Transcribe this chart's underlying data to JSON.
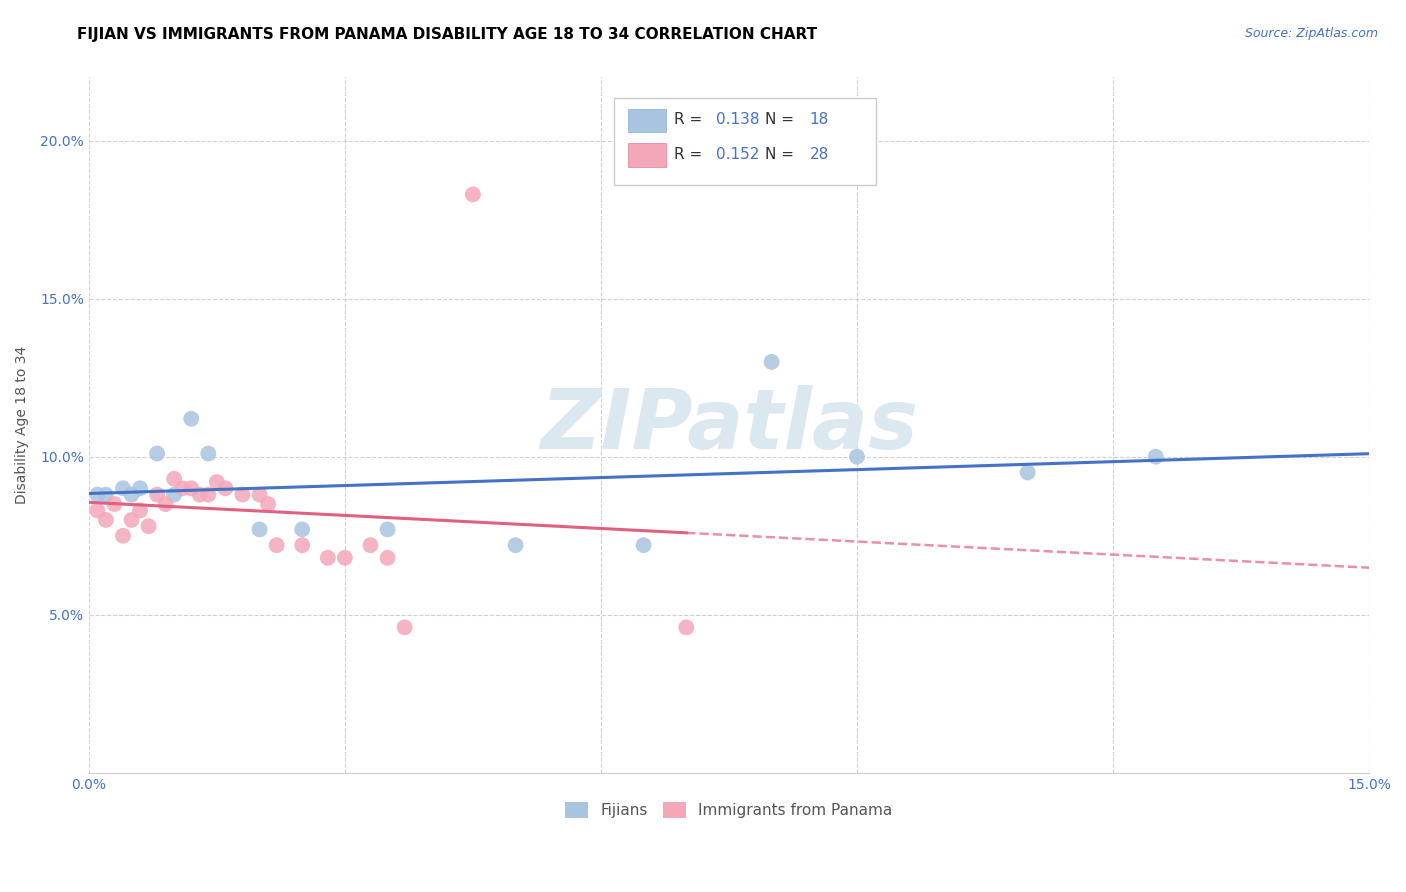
{
  "title": "FIJIAN VS IMMIGRANTS FROM PANAMA DISABILITY AGE 18 TO 34 CORRELATION CHART",
  "source": "Source: ZipAtlas.com",
  "ylabel": "Disability Age 18 to 34",
  "xlim": [
    0.0,
    0.15
  ],
  "ylim": [
    0.0,
    0.22
  ],
  "fijians_x": [
    0.001,
    0.002,
    0.004,
    0.005,
    0.006,
    0.008,
    0.01,
    0.012,
    0.014,
    0.02,
    0.025,
    0.035,
    0.05,
    0.065,
    0.08,
    0.09,
    0.11,
    0.125
  ],
  "fijians_y": [
    0.088,
    0.088,
    0.09,
    0.088,
    0.09,
    0.101,
    0.088,
    0.112,
    0.101,
    0.077,
    0.077,
    0.077,
    0.072,
    0.072,
    0.13,
    0.1,
    0.095,
    0.1
  ],
  "panama_x": [
    0.001,
    0.002,
    0.003,
    0.004,
    0.005,
    0.006,
    0.007,
    0.008,
    0.009,
    0.01,
    0.011,
    0.012,
    0.013,
    0.014,
    0.015,
    0.016,
    0.018,
    0.02,
    0.021,
    0.022,
    0.025,
    0.028,
    0.03,
    0.033,
    0.035,
    0.037,
    0.045,
    0.07
  ],
  "panama_y": [
    0.083,
    0.08,
    0.085,
    0.075,
    0.08,
    0.083,
    0.078,
    0.088,
    0.085,
    0.093,
    0.09,
    0.09,
    0.088,
    0.088,
    0.092,
    0.09,
    0.088,
    0.088,
    0.085,
    0.072,
    0.072,
    0.068,
    0.068,
    0.072,
    0.068,
    0.046,
    0.183,
    0.046
  ],
  "R_fijians": 0.138,
  "N_fijians": 18,
  "R_panama": 0.152,
  "N_panama": 28,
  "fijian_color": "#a8c4e0",
  "panama_color": "#f4a7b9",
  "fijian_line_color": "#4472c4",
  "panama_line_color": "#e06080",
  "watermark": "ZIPatlas",
  "watermark_color": "#dce8f0",
  "title_fontsize": 11,
  "axis_label_fontsize": 10,
  "tick_fontsize": 10,
  "source_color": "#4472c4",
  "tick_color": "#4472c4"
}
